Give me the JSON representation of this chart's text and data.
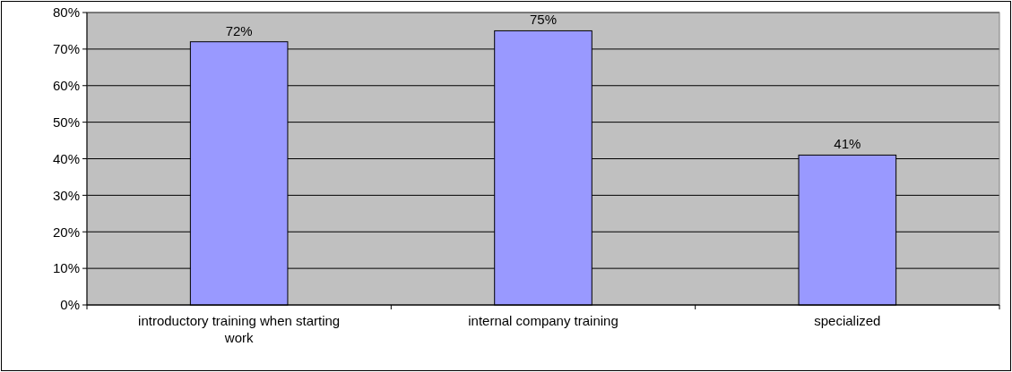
{
  "chart_data": {
    "type": "bar",
    "categories": [
      "introductory training when starting work",
      "internal company training",
      "specialized"
    ],
    "values": [
      72,
      75,
      41
    ],
    "value_labels": [
      "72%",
      "75%",
      "41%"
    ],
    "color": "#9999ff",
    "ylim": [
      0,
      80
    ],
    "yticks": [
      {
        "value": 0,
        "label": "0%"
      },
      {
        "value": 10,
        "label": "10%"
      },
      {
        "value": 20,
        "label": "20%"
      },
      {
        "value": 30,
        "label": "30%"
      },
      {
        "value": 40,
        "label": "40%"
      },
      {
        "value": 50,
        "label": "50%"
      },
      {
        "value": 60,
        "label": "60%"
      },
      {
        "value": 70,
        "label": "70%"
      },
      {
        "value": 80,
        "label": "80%"
      }
    ],
    "grid": "y"
  }
}
